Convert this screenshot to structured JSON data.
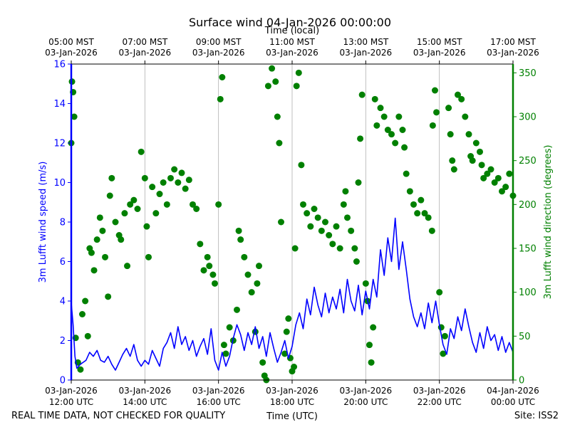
{
  "chart_data": {
    "type": "line+scatter",
    "title": "Surface wind 04-Jan-2026 00:00:00",
    "top_axis_label": "Time (local)",
    "xlabel": "Time (UTC)",
    "ylabel_left": "3m Lufft wind speed (m/s)",
    "ylabel_right": "3m Lufft wind direction (degrees)",
    "footer_left": "REAL TIME DATA, NOT CHECKED FOR QUALITY",
    "footer_right": "Site: ISS2",
    "xlim_hours_utc": [
      12,
      24
    ],
    "ylim_left": [
      0,
      16
    ],
    "ylim_right": [
      0,
      360
    ],
    "colors": {
      "speed": "#0000ff",
      "direction": "#008000",
      "axis": "#000000",
      "grid": "#b0b0b0"
    },
    "left_ticks": [
      0,
      2,
      4,
      6,
      8,
      10,
      12,
      14,
      16
    ],
    "right_ticks": [
      0,
      50,
      100,
      150,
      200,
      250,
      300,
      350
    ],
    "bottom_ticks": [
      {
        "hour": 12,
        "date": "03-Jan-2026",
        "time": "12:00 UTC"
      },
      {
        "hour": 14,
        "date": "03-Jan-2026",
        "time": "14:00 UTC"
      },
      {
        "hour": 16,
        "date": "03-Jan-2026",
        "time": "16:00 UTC"
      },
      {
        "hour": 18,
        "date": "03-Jan-2026",
        "time": "18:00 UTC"
      },
      {
        "hour": 20,
        "date": "03-Jan-2026",
        "time": "20:00 UTC"
      },
      {
        "hour": 22,
        "date": "03-Jan-2026",
        "time": "22:00 UTC"
      },
      {
        "hour": 24,
        "date": "04-Jan-2026",
        "time": "00:00 UTC"
      }
    ],
    "top_ticks": [
      {
        "hour": 12,
        "time": "05:00 MST",
        "date": "03-Jan-2026"
      },
      {
        "hour": 14,
        "time": "07:00 MST",
        "date": "03-Jan-2026"
      },
      {
        "hour": 16,
        "time": "09:00 MST",
        "date": "03-Jan-2026"
      },
      {
        "hour": 18,
        "time": "11:00 MST",
        "date": "03-Jan-2026"
      },
      {
        "hour": 20,
        "time": "13:00 MST",
        "date": "03-Jan-2026"
      },
      {
        "hour": 22,
        "time": "15:00 MST",
        "date": "03-Jan-2026"
      },
      {
        "hour": 24,
        "time": "17:00 MST",
        "date": "03-Jan-2026"
      }
    ],
    "series": [
      {
        "name": "wind speed",
        "axis": "left",
        "style": "line",
        "points": [
          [
            12.0,
            3.9
          ],
          [
            12.05,
            2.8
          ],
          [
            12.1,
            1.2
          ],
          [
            12.15,
            0.6
          ],
          [
            12.25,
            0.8
          ],
          [
            12.4,
            1.0
          ],
          [
            12.5,
            1.4
          ],
          [
            12.6,
            1.2
          ],
          [
            12.7,
            1.5
          ],
          [
            12.8,
            1.0
          ],
          [
            12.9,
            0.9
          ],
          [
            13.0,
            1.2
          ],
          [
            13.1,
            0.8
          ],
          [
            13.2,
            0.5
          ],
          [
            13.3,
            0.9
          ],
          [
            13.4,
            1.3
          ],
          [
            13.5,
            1.6
          ],
          [
            13.6,
            1.2
          ],
          [
            13.7,
            1.8
          ],
          [
            13.8,
            1.0
          ],
          [
            13.9,
            0.7
          ],
          [
            14.0,
            1.0
          ],
          [
            14.1,
            0.8
          ],
          [
            14.2,
            1.5
          ],
          [
            14.3,
            1.1
          ],
          [
            14.4,
            0.7
          ],
          [
            14.5,
            1.6
          ],
          [
            14.6,
            1.9
          ],
          [
            14.7,
            2.4
          ],
          [
            14.8,
            1.6
          ],
          [
            14.9,
            2.7
          ],
          [
            15.0,
            1.8
          ],
          [
            15.1,
            2.2
          ],
          [
            15.2,
            1.5
          ],
          [
            15.3,
            2.0
          ],
          [
            15.4,
            1.2
          ],
          [
            15.5,
            1.7
          ],
          [
            15.6,
            2.1
          ],
          [
            15.7,
            1.3
          ],
          [
            15.8,
            2.6
          ],
          [
            15.9,
            1.0
          ],
          [
            16.0,
            0.5
          ],
          [
            16.1,
            1.4
          ],
          [
            16.2,
            0.7
          ],
          [
            16.3,
            1.2
          ],
          [
            16.4,
            2.1
          ],
          [
            16.5,
            2.8
          ],
          [
            16.6,
            2.3
          ],
          [
            16.7,
            1.5
          ],
          [
            16.8,
            2.4
          ],
          [
            16.9,
            1.8
          ],
          [
            17.0,
            2.7
          ],
          [
            17.1,
            1.6
          ],
          [
            17.2,
            2.2
          ],
          [
            17.3,
            1.2
          ],
          [
            17.4,
            2.4
          ],
          [
            17.5,
            1.6
          ],
          [
            17.6,
            0.9
          ],
          [
            17.7,
            1.4
          ],
          [
            17.8,
            2.0
          ],
          [
            17.9,
            1.1
          ],
          [
            18.0,
            1.7
          ],
          [
            18.1,
            2.8
          ],
          [
            18.2,
            3.4
          ],
          [
            18.3,
            2.6
          ],
          [
            18.4,
            4.1
          ],
          [
            18.5,
            3.3
          ],
          [
            18.6,
            4.7
          ],
          [
            18.7,
            3.8
          ],
          [
            18.8,
            3.2
          ],
          [
            18.9,
            4.4
          ],
          [
            19.0,
            3.4
          ],
          [
            19.1,
            4.2
          ],
          [
            19.2,
            3.6
          ],
          [
            19.3,
            4.6
          ],
          [
            19.4,
            3.4
          ],
          [
            19.5,
            5.1
          ],
          [
            19.6,
            4.0
          ],
          [
            19.7,
            3.5
          ],
          [
            19.8,
            4.8
          ],
          [
            19.9,
            3.3
          ],
          [
            20.0,
            4.5
          ],
          [
            20.1,
            3.6
          ],
          [
            20.2,
            5.1
          ],
          [
            20.3,
            4.2
          ],
          [
            20.4,
            6.6
          ],
          [
            20.5,
            5.3
          ],
          [
            20.6,
            7.2
          ],
          [
            20.7,
            6.0
          ],
          [
            20.8,
            8.2
          ],
          [
            20.9,
            5.6
          ],
          [
            21.0,
            7.0
          ],
          [
            21.1,
            5.6
          ],
          [
            21.2,
            4.1
          ],
          [
            21.3,
            3.2
          ],
          [
            21.4,
            2.7
          ],
          [
            21.5,
            3.4
          ],
          [
            21.6,
            2.6
          ],
          [
            21.7,
            3.9
          ],
          [
            21.8,
            2.9
          ],
          [
            21.9,
            4.0
          ],
          [
            22.0,
            2.8
          ],
          [
            22.1,
            1.8
          ],
          [
            22.2,
            1.3
          ],
          [
            22.3,
            2.6
          ],
          [
            22.4,
            2.1
          ],
          [
            22.5,
            3.2
          ],
          [
            22.6,
            2.5
          ],
          [
            22.7,
            3.6
          ],
          [
            22.8,
            2.7
          ],
          [
            22.9,
            1.9
          ],
          [
            23.0,
            1.4
          ],
          [
            23.1,
            2.4
          ],
          [
            23.2,
            1.6
          ],
          [
            23.3,
            2.7
          ],
          [
            23.4,
            2.0
          ],
          [
            23.5,
            2.3
          ],
          [
            23.6,
            1.5
          ],
          [
            23.7,
            2.2
          ],
          [
            23.8,
            1.4
          ],
          [
            23.9,
            1.9
          ],
          [
            24.0,
            1.4
          ]
        ]
      },
      {
        "name": "wind direction",
        "axis": "right",
        "style": "markers",
        "points": [
          [
            12.0,
            270
          ],
          [
            12.02,
            340
          ],
          [
            12.05,
            328
          ],
          [
            12.08,
            300
          ],
          [
            12.12,
            48
          ],
          [
            12.18,
            20
          ],
          [
            12.25,
            12
          ],
          [
            12.3,
            75
          ],
          [
            12.38,
            90
          ],
          [
            12.45,
            50
          ],
          [
            12.5,
            150
          ],
          [
            12.55,
            145
          ],
          [
            12.62,
            125
          ],
          [
            12.7,
            160
          ],
          [
            12.78,
            185
          ],
          [
            12.85,
            170
          ],
          [
            12.92,
            140
          ],
          [
            13.0,
            95
          ],
          [
            13.05,
            210
          ],
          [
            13.1,
            230
          ],
          [
            13.2,
            180
          ],
          [
            13.3,
            165
          ],
          [
            13.35,
            160
          ],
          [
            13.45,
            190
          ],
          [
            13.52,
            130
          ],
          [
            13.6,
            200
          ],
          [
            13.7,
            205
          ],
          [
            13.8,
            195
          ],
          [
            13.9,
            260
          ],
          [
            14.0,
            230
          ],
          [
            14.05,
            175
          ],
          [
            14.1,
            140
          ],
          [
            14.2,
            220
          ],
          [
            14.3,
            190
          ],
          [
            14.4,
            212
          ],
          [
            14.5,
            225
          ],
          [
            14.6,
            200
          ],
          [
            14.7,
            230
          ],
          [
            14.8,
            240
          ],
          [
            14.9,
            225
          ],
          [
            15.0,
            236
          ],
          [
            15.1,
            218
          ],
          [
            15.2,
            228
          ],
          [
            15.3,
            200
          ],
          [
            15.4,
            195
          ],
          [
            15.5,
            155
          ],
          [
            15.6,
            125
          ],
          [
            15.7,
            140
          ],
          [
            15.75,
            130
          ],
          [
            15.85,
            120
          ],
          [
            15.9,
            110
          ],
          [
            16.0,
            200
          ],
          [
            16.05,
            320
          ],
          [
            16.1,
            345
          ],
          [
            16.15,
            40
          ],
          [
            16.2,
            30
          ],
          [
            16.3,
            60
          ],
          [
            16.4,
            45
          ],
          [
            16.5,
            80
          ],
          [
            16.55,
            170
          ],
          [
            16.6,
            160
          ],
          [
            16.7,
            140
          ],
          [
            16.8,
            120
          ],
          [
            16.9,
            100
          ],
          [
            17.0,
            55
          ],
          [
            17.05,
            110
          ],
          [
            17.1,
            130
          ],
          [
            17.2,
            20
          ],
          [
            17.25,
            5
          ],
          [
            17.3,
            0
          ],
          [
            17.35,
            335
          ],
          [
            17.45,
            355
          ],
          [
            17.55,
            340
          ],
          [
            17.6,
            300
          ],
          [
            17.65,
            270
          ],
          [
            17.7,
            180
          ],
          [
            17.8,
            30
          ],
          [
            17.85,
            55
          ],
          [
            17.9,
            70
          ],
          [
            17.95,
            25
          ],
          [
            18.0,
            10
          ],
          [
            18.05,
            15
          ],
          [
            18.08,
            150
          ],
          [
            18.12,
            335
          ],
          [
            18.18,
            350
          ],
          [
            18.25,
            245
          ],
          [
            18.3,
            200
          ],
          [
            18.4,
            190
          ],
          [
            18.5,
            175
          ],
          [
            18.6,
            195
          ],
          [
            18.7,
            185
          ],
          [
            18.8,
            170
          ],
          [
            18.9,
            180
          ],
          [
            19.0,
            165
          ],
          [
            19.1,
            155
          ],
          [
            19.2,
            175
          ],
          [
            19.3,
            150
          ],
          [
            19.4,
            200
          ],
          [
            19.45,
            215
          ],
          [
            19.5,
            185
          ],
          [
            19.6,
            170
          ],
          [
            19.7,
            150
          ],
          [
            19.75,
            135
          ],
          [
            19.8,
            225
          ],
          [
            19.85,
            275
          ],
          [
            19.9,
            325
          ],
          [
            20.0,
            110
          ],
          [
            20.05,
            90
          ],
          [
            20.1,
            40
          ],
          [
            20.15,
            20
          ],
          [
            20.2,
            60
          ],
          [
            20.25,
            320
          ],
          [
            20.3,
            290
          ],
          [
            20.4,
            310
          ],
          [
            20.5,
            300
          ],
          [
            20.6,
            285
          ],
          [
            20.7,
            280
          ],
          [
            20.8,
            270
          ],
          [
            20.9,
            300
          ],
          [
            21.0,
            285
          ],
          [
            21.05,
            265
          ],
          [
            21.1,
            235
          ],
          [
            21.2,
            215
          ],
          [
            21.3,
            200
          ],
          [
            21.4,
            190
          ],
          [
            21.5,
            205
          ],
          [
            21.6,
            190
          ],
          [
            21.7,
            185
          ],
          [
            21.8,
            170
          ],
          [
            21.82,
            290
          ],
          [
            21.88,
            330
          ],
          [
            21.92,
            305
          ],
          [
            22.0,
            100
          ],
          [
            22.05,
            60
          ],
          [
            22.1,
            30
          ],
          [
            22.15,
            50
          ],
          [
            22.25,
            310
          ],
          [
            22.3,
            280
          ],
          [
            22.35,
            250
          ],
          [
            22.4,
            240
          ],
          [
            22.5,
            325
          ],
          [
            22.6,
            320
          ],
          [
            22.7,
            300
          ],
          [
            22.8,
            280
          ],
          [
            22.85,
            255
          ],
          [
            22.9,
            250
          ],
          [
            23.0,
            270
          ],
          [
            23.1,
            260
          ],
          [
            23.15,
            245
          ],
          [
            23.2,
            230
          ],
          [
            23.3,
            235
          ],
          [
            23.4,
            240
          ],
          [
            23.5,
            225
          ],
          [
            23.6,
            230
          ],
          [
            23.7,
            215
          ],
          [
            23.8,
            220
          ],
          [
            23.9,
            235
          ],
          [
            24.0,
            210
          ]
        ]
      }
    ]
  }
}
